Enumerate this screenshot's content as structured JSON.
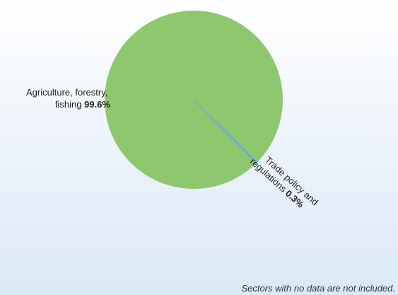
{
  "chart_data": {
    "type": "pie",
    "slices": [
      {
        "name": "Agriculture, forestry, fishing",
        "label_lines": [
          "Agriculture, forestry,",
          "fishing"
        ],
        "value": 99.6,
        "value_label": "99.6%",
        "color": "#8fc76e"
      },
      {
        "name": "Trade policy and regulations",
        "label_lines": [
          "Trade policy and",
          "regulations"
        ],
        "value": 0.3,
        "value_label": "0.3%",
        "color": "#6fa8dc"
      }
    ],
    "footnote": "Sectors with no data are not included."
  }
}
